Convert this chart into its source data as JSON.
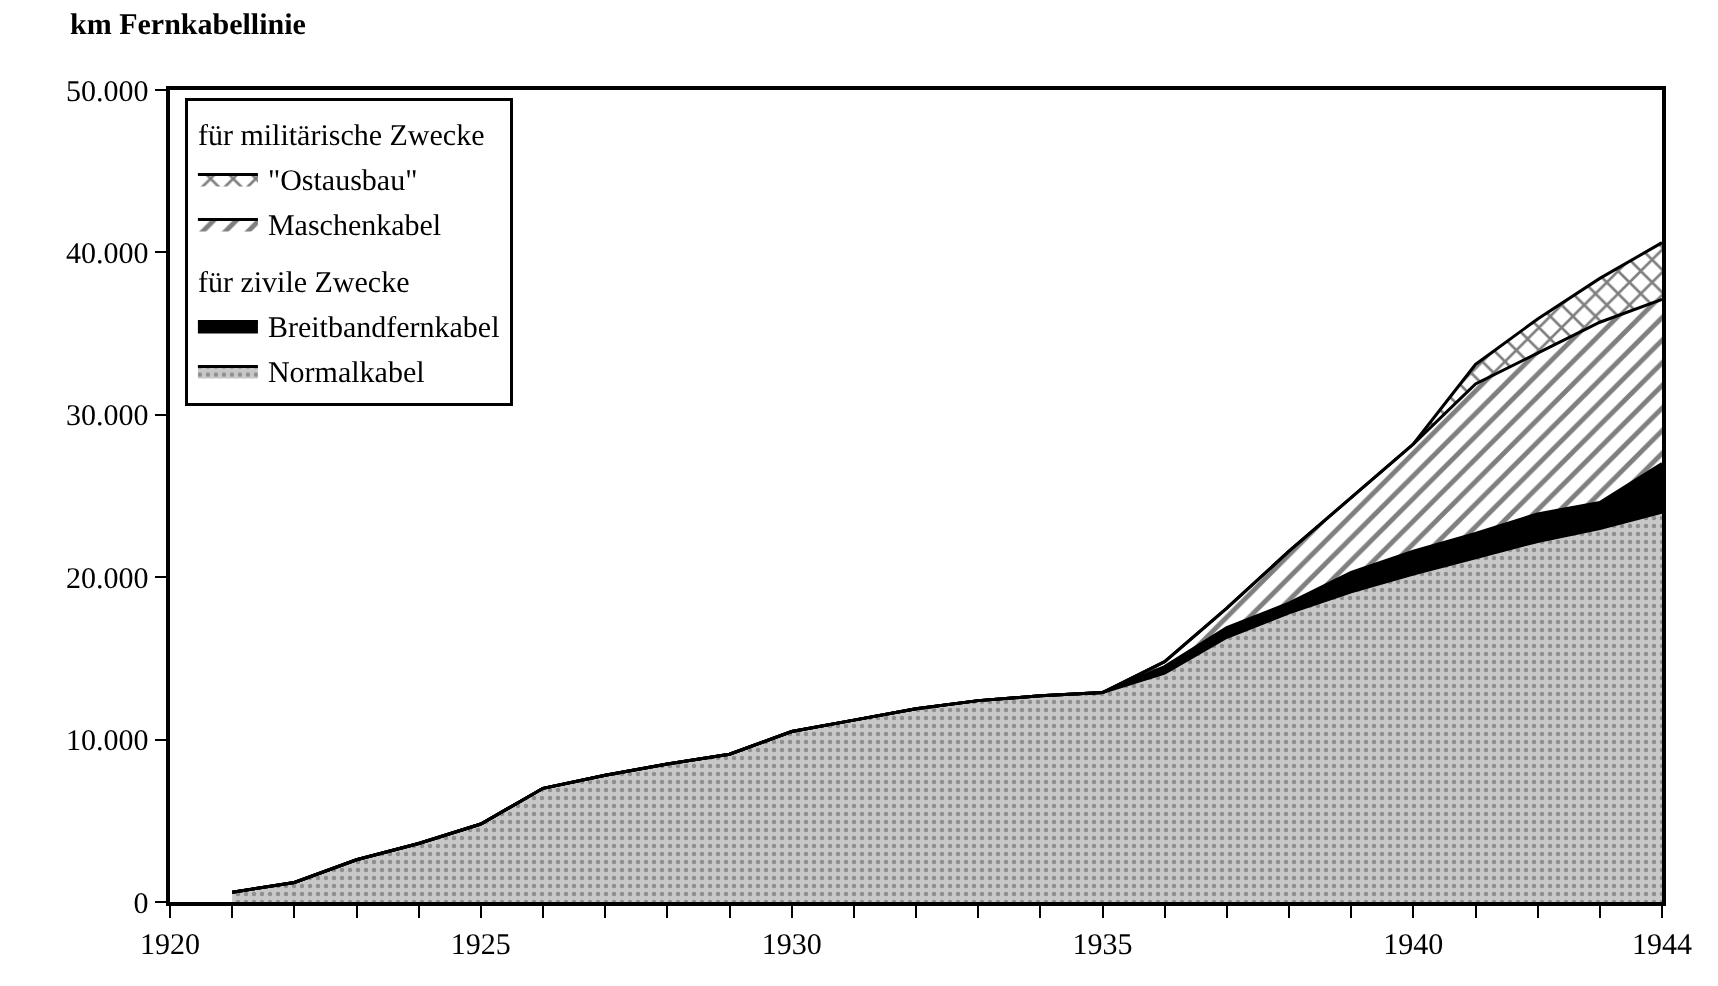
{
  "chart_data": {
    "type": "area",
    "stacked": true,
    "ylabel": "km Fernkabellinie",
    "annotations": [
      "für zivile Zwecke",
      "für militärische Zwecke"
    ],
    "x": [
      1921,
      1922,
      1923,
      1924,
      1925,
      1926,
      1927,
      1928,
      1929,
      1930,
      1931,
      1932,
      1933,
      1934,
      1935,
      1936,
      1937,
      1938,
      1939,
      1940,
      1941,
      1942,
      1943,
      1944
    ],
    "series": [
      {
        "name": "Normalkabel",
        "color": "#c8c8c8",
        "values": [
          600,
          1200,
          2600,
          3600,
          4800,
          7000,
          7800,
          8500,
          9100,
          10500,
          11200,
          11900,
          12400,
          12700,
          12900,
          14100,
          16300,
          17800,
          19100,
          20200,
          21200,
          22200,
          23000,
          24000
        ]
      },
      {
        "name": "Breitbandfernkabel",
        "color": "#000000",
        "values": [
          0,
          0,
          0,
          0,
          0,
          0,
          0,
          0,
          0,
          0,
          0,
          0,
          0,
          0,
          0,
          400,
          600,
          600,
          1200,
          1400,
          1500,
          1700,
          1600,
          3000
        ]
      },
      {
        "name": "Maschenkabel",
        "color": "#ffffff",
        "values": [
          0,
          0,
          0,
          0,
          0,
          0,
          0,
          0,
          0,
          0,
          0,
          0,
          0,
          0,
          0,
          300,
          1200,
          3200,
          4600,
          6600,
          9200,
          9900,
          11100,
          10100
        ]
      },
      {
        "name": "\"Ostausbau\"",
        "color": "#ffffff",
        "values": [
          0,
          0,
          0,
          0,
          0,
          0,
          0,
          0,
          0,
          0,
          0,
          0,
          0,
          0,
          0,
          0,
          0,
          0,
          0,
          0,
          1200,
          2100,
          2700,
          3500
        ]
      }
    ],
    "xlim": [
      1920,
      1944
    ],
    "xticks": [
      1920,
      {
        "value": 1921,
        "label": null
      },
      {
        "value": 1922,
        "label": null
      },
      {
        "value": 1923,
        "label": null
      },
      {
        "value": 1924,
        "label": null
      },
      1925,
      {
        "value": 1926,
        "label": null
      },
      {
        "value": 1927,
        "label": null
      },
      {
        "value": 1928,
        "label": null
      },
      {
        "value": 1929,
        "label": null
      },
      1930,
      {
        "value": 1931,
        "label": null
      },
      {
        "value": 1932,
        "label": null
      },
      {
        "value": 1933,
        "label": null
      },
      {
        "value": 1934,
        "label": null
      },
      1935,
      {
        "value": 1936,
        "label": null
      },
      {
        "value": 1937,
        "label": null
      },
      {
        "value": 1938,
        "label": null
      },
      {
        "value": 1939,
        "label": null
      },
      1940,
      {
        "value": 1941,
        "label": null
      },
      {
        "value": 1942,
        "label": null
      },
      {
        "value": 1943,
        "label": null
      },
      1944
    ],
    "ylim": [
      0,
      50000
    ],
    "yticks": [
      0,
      {
        "value": 10000,
        "label": "10.000"
      },
      {
        "value": 20000,
        "label": "20.000"
      },
      {
        "value": 30000,
        "label": "30.000"
      },
      {
        "value": 40000,
        "label": "40.000"
      },
      {
        "value": 50000,
        "label": "50.000"
      }
    ],
    "legend": "top left"
  }
}
